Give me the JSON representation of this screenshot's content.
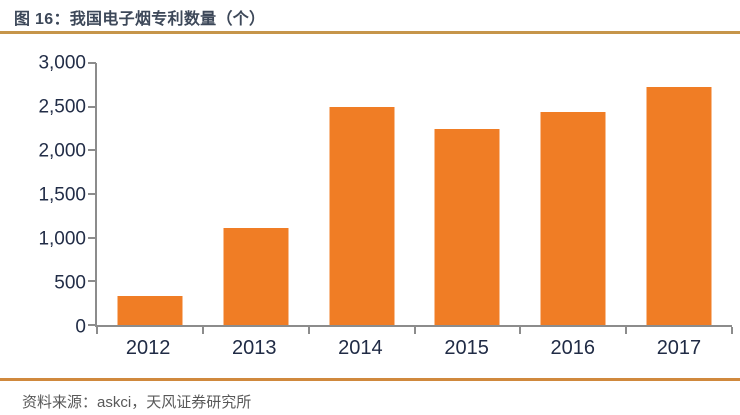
{
  "header": {
    "title": "图 16：我国电子烟专利数量（个）"
  },
  "footer": {
    "source_prefix": "资料来源：",
    "source_text": "askci，天风证券研究所"
  },
  "colors": {
    "bar": "#f07d25",
    "title_rule": "#c6954a",
    "footer_rule": "#d0893d",
    "axis": "#8c8c8c",
    "title_text": "#3d4859",
    "tick_text": "#222d47",
    "source_text": "#595959"
  },
  "chart_data": {
    "type": "bar",
    "title": "图 16：我国电子烟专利数量（个）",
    "categories": [
      "2012",
      "2013",
      "2014",
      "2015",
      "2016",
      "2017"
    ],
    "values": [
      330,
      1110,
      2500,
      2250,
      2440,
      2730
    ],
    "xlabel": "",
    "ylabel": "",
    "ylim": [
      0,
      3000
    ],
    "yticks": [
      {
        "value": 0,
        "label": "0"
      },
      {
        "value": 500,
        "label": "500"
      },
      {
        "value": 1000,
        "label": "1,000"
      },
      {
        "value": 1500,
        "label": "1,500"
      },
      {
        "value": 2000,
        "label": "2,000"
      },
      {
        "value": 2500,
        "label": "2,500"
      },
      {
        "value": 3000,
        "label": "3,000"
      }
    ],
    "grid": false,
    "legend": "none",
    "bar_color": "#f07d25"
  }
}
